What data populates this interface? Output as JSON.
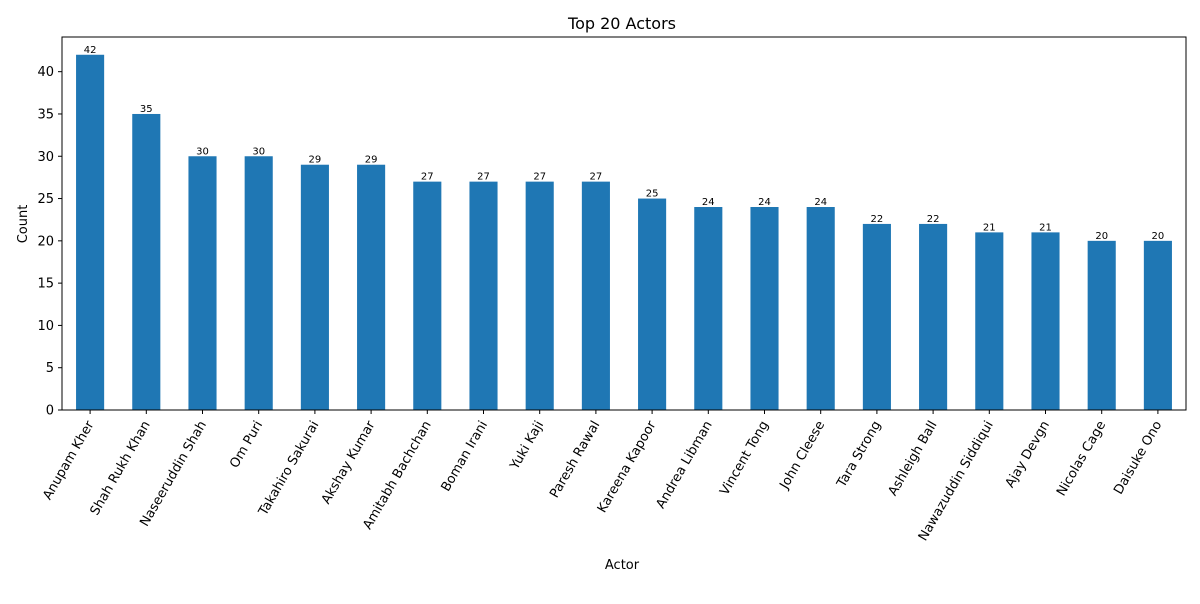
{
  "chart_data": {
    "type": "bar",
    "title": "Top 20 Actors",
    "xlabel": "Actor",
    "ylabel": "Count",
    "ylim": [
      0,
      44.1
    ],
    "yticks": [
      0,
      5,
      10,
      15,
      20,
      25,
      30,
      35,
      40
    ],
    "grid": false,
    "bar_color": "#1f77b4",
    "categories": [
      "Anupam Kher",
      "Shah Rukh Khan",
      "Naseeruddin Shah",
      "Om Puri",
      "Takahiro Sakurai",
      "Akshay Kumar",
      "Amitabh Bachchan",
      "Boman Irani",
      "Yuki Kaji",
      "Paresh Rawal",
      "Kareena Kapoor",
      "Andrea Libman",
      "Vincent Tong",
      "John Cleese",
      "Tara Strong",
      "Ashleigh Ball",
      "Nawazuddin Siddiqui",
      "Ajay Devgn",
      "Nicolas Cage",
      "Daisuke Ono"
    ],
    "values": [
      42,
      35,
      30,
      30,
      29,
      29,
      27,
      27,
      27,
      27,
      25,
      24,
      24,
      24,
      22,
      22,
      21,
      21,
      20,
      20
    ]
  }
}
